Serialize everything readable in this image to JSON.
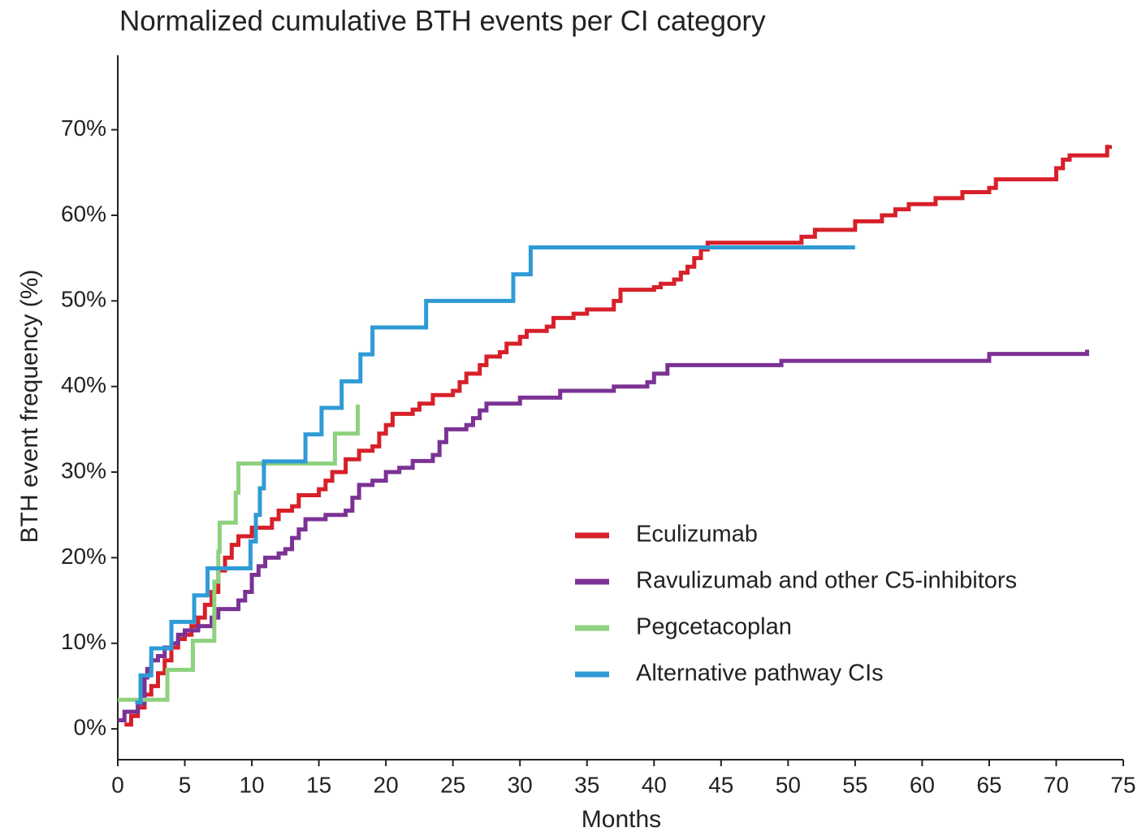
{
  "chart_data": {
    "type": "line",
    "step": "post",
    "title": "Normalized cumulative BTH events per CI category",
    "xlabel": "Months",
    "ylabel": "BTH event frequency (%)",
    "xlim": [
      0,
      75
    ],
    "ylim": [
      -3.6,
      78.7
    ],
    "xticks": [
      0,
      5,
      10,
      15,
      20,
      25,
      30,
      35,
      40,
      45,
      50,
      55,
      60,
      65,
      70,
      75
    ],
    "yticks": [
      {
        "value": 0,
        "label": "0%"
      },
      {
        "value": 10,
        "label": "10%"
      },
      {
        "value": 20,
        "label": "20%"
      },
      {
        "value": 30,
        "label": "30%"
      },
      {
        "value": 40,
        "label": "40%"
      },
      {
        "value": 50,
        "label": "50%"
      },
      {
        "value": 60,
        "label": "60%"
      },
      {
        "value": 70,
        "label": "70%"
      }
    ],
    "legend": "right",
    "series": [
      {
        "name": "Eculizumab",
        "color": "#d7202a",
        "x": [
          0.5,
          1,
          1.5,
          2,
          2.5,
          3,
          3.5,
          4,
          4.5,
          5,
          5.5,
          6,
          6.5,
          7,
          7.5,
          8,
          8.5,
          9,
          10,
          11.5,
          12,
          13,
          13.5,
          15,
          15.5,
          16,
          17,
          18,
          19,
          19.5,
          20,
          20.5,
          22,
          22.5,
          23.5,
          25,
          25.5,
          26,
          27,
          27.5,
          28.5,
          29,
          30,
          30.5,
          32,
          32.5,
          34,
          35,
          37,
          37.5,
          40,
          40.5,
          41.5,
          42,
          42.5,
          43,
          43.5,
          44,
          51,
          52,
          55,
          57,
          58,
          59,
          61,
          63,
          65,
          65.5,
          70,
          70.5,
          71,
          73.8,
          74
        ],
        "values": [
          0.5,
          1.5,
          2.5,
          4,
          5,
          6.5,
          8,
          9.5,
          10.5,
          11,
          12,
          13,
          14.5,
          16,
          18.5,
          20,
          21.5,
          22.5,
          23.5,
          24.5,
          25.5,
          26,
          27.3,
          28,
          29,
          30,
          31.5,
          32.5,
          33,
          34.5,
          35.5,
          36.8,
          37.3,
          38,
          39,
          39.5,
          40.5,
          41.5,
          42.5,
          43.5,
          44,
          45,
          45.8,
          46.5,
          47,
          48,
          48.5,
          49,
          50,
          51.3,
          51.6,
          52,
          52.5,
          53.3,
          54,
          55,
          56,
          56.8,
          57.5,
          58.3,
          59.3,
          60,
          60.7,
          61.3,
          62,
          62.7,
          63.2,
          64.2,
          65.5,
          66.5,
          67,
          68,
          68.2
        ]
      },
      {
        "name": "Ravulizumab and other C5-inhibitors",
        "color": "#7b3294",
        "x": [
          0,
          0.5,
          1.5,
          2,
          2.2,
          2.5,
          3,
          3.5,
          4,
          4.5,
          5,
          6,
          7,
          7.5,
          9,
          9.5,
          10,
          10.5,
          11,
          12,
          12.5,
          13,
          13.5,
          14,
          15.5,
          17,
          17.5,
          18,
          19,
          20,
          21,
          22,
          23.5,
          24,
          24.5,
          26,
          26.5,
          27,
          27.5,
          30,
          33,
          37,
          39.5,
          40,
          41,
          49.5,
          65,
          72.3
        ],
        "values": [
          1,
          2,
          3,
          6,
          7,
          8,
          8.5,
          9.5,
          10,
          11,
          11.5,
          12,
          13,
          14,
          15,
          16,
          18,
          19,
          20,
          20.5,
          21,
          22.3,
          23.3,
          24.5,
          25,
          25.5,
          27,
          28.5,
          29,
          30,
          30.5,
          31.3,
          32,
          33.5,
          35,
          35.5,
          36.3,
          37.2,
          38,
          38.7,
          39.5,
          40,
          40.5,
          41.5,
          42.5,
          43,
          43.8,
          44.3
        ]
      },
      {
        "name": "Pegcetacoplan",
        "color": "#8fd17f",
        "x": [
          0,
          3.7,
          5.6,
          7.2,
          7.5,
          7.6,
          8.8,
          9,
          16.2,
          17.9
        ],
        "values": [
          3.4,
          6.9,
          10.3,
          17.2,
          20.7,
          24.1,
          27.6,
          31,
          34.5,
          37.9
        ]
      },
      {
        "name": "Alternative pathway CIs",
        "color": "#2f9bd6",
        "x": [
          1.3,
          1.7,
          2.5,
          4,
          5.7,
          6.7,
          9.9,
          10.3,
          10.6,
          10.9,
          14,
          15.2,
          16.7,
          18.1,
          19,
          23,
          29.5,
          30.8,
          55
        ],
        "values": [
          3.1,
          6.25,
          9.4,
          12.5,
          15.6,
          18.75,
          21.9,
          25,
          28.1,
          31.25,
          34.4,
          37.5,
          40.6,
          43.75,
          46.9,
          50,
          53.1,
          56.25,
          56.25
        ]
      }
    ]
  }
}
